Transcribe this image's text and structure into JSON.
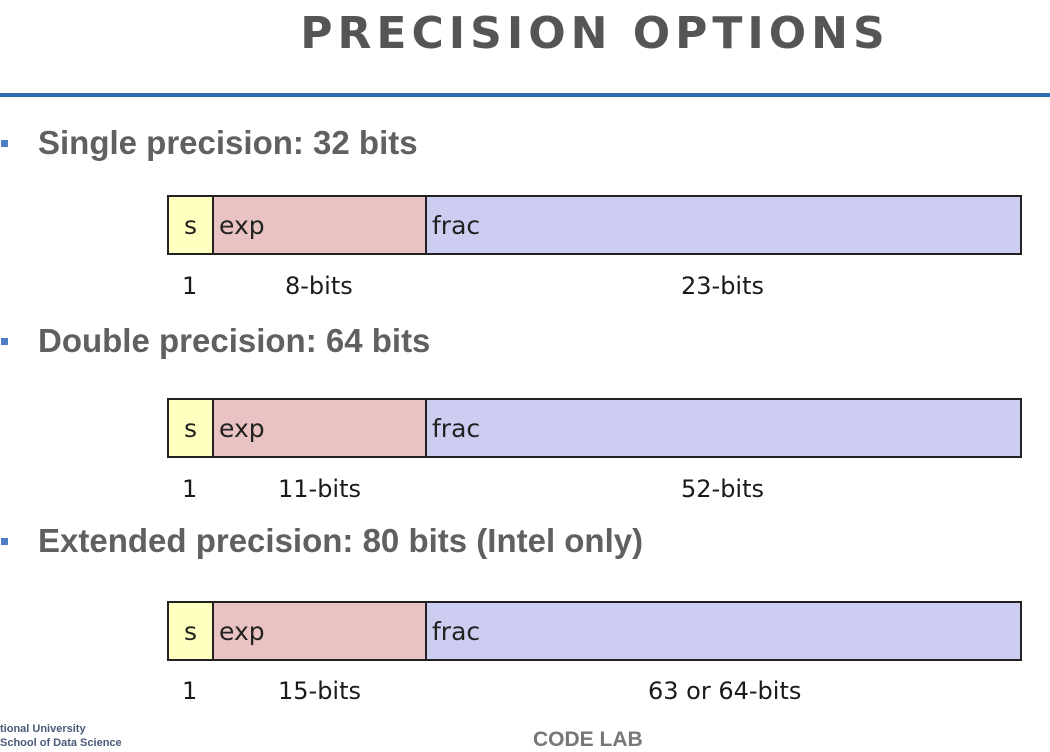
{
  "slide": {
    "title": "PRECISION OPTIONS",
    "footer_institution_line1": "tional University",
    "footer_institution_line2": "School of Data Science",
    "footer_center": "CODE LAB",
    "rule_color": "#2e6db4",
    "bullet_color": "#4f7fc4"
  },
  "formats": [
    {
      "heading": "Single precision: 32 bits",
      "fields": {
        "s": "s",
        "exp": "exp",
        "frac": "frac"
      },
      "sizes": {
        "s": "1",
        "exp": "8-bits",
        "frac": "23-bits"
      }
    },
    {
      "heading": "Double precision: 64 bits",
      "fields": {
        "s": "s",
        "exp": "exp",
        "frac": "frac"
      },
      "sizes": {
        "s": "1",
        "exp": "11-bits",
        "frac": "52-bits"
      }
    },
    {
      "heading": "Extended precision: 80 bits (Intel only)",
      "fields": {
        "s": "s",
        "exp": "exp",
        "frac": "frac"
      },
      "sizes": {
        "s": "1",
        "exp": "15-bits",
        "frac": "63 or 64-bits"
      }
    }
  ],
  "colors": {
    "sign": "#ffffbf",
    "exponent": "#e9c3c3",
    "fraction": "#cccdf1"
  }
}
